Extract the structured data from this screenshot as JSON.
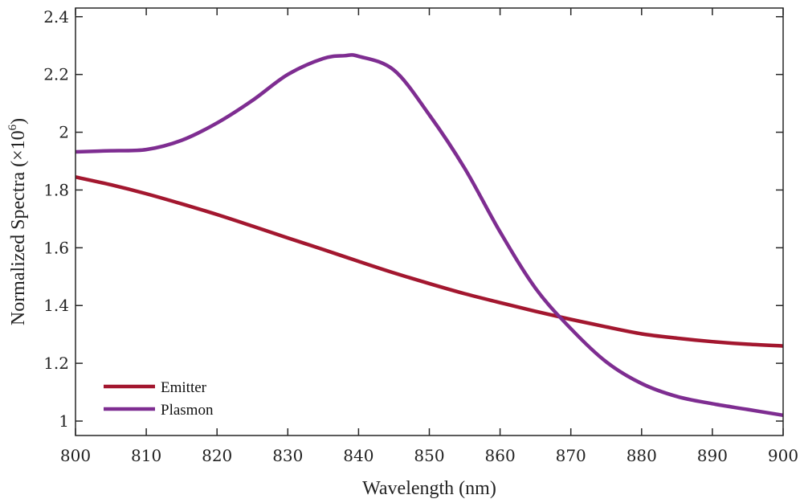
{
  "chart_data": {
    "type": "line",
    "title": "",
    "xlabel": "Wavelength (nm)",
    "ylabel_prefix": "Normalized Spectra (×10",
    "ylabel_exponent": "6",
    "ylabel_suffix": ")",
    "xlim": [
      800,
      900
    ],
    "ylim": [
      0.95,
      2.43
    ],
    "xticks": [
      800,
      810,
      820,
      830,
      840,
      850,
      860,
      870,
      880,
      890,
      900
    ],
    "xtick_labels": [
      "800",
      "810",
      "820",
      "830",
      "840",
      "850",
      "860",
      "870",
      "880",
      "890",
      "900"
    ],
    "yticks": [
      1,
      1.2,
      1.4,
      1.6,
      1.8,
      2,
      2.2,
      2.4
    ],
    "ytick_labels": [
      "1",
      "1.2",
      "1.4",
      "1.6",
      "1.8",
      "2",
      "2.2",
      "2.4"
    ],
    "grid": false,
    "legend_position": "bottom-left",
    "series": [
      {
        "name": "Emitter",
        "color": "#A3172F",
        "x": [
          800,
          805,
          810,
          815,
          820,
          825,
          830,
          835,
          840,
          845,
          850,
          855,
          860,
          865,
          870,
          875,
          880,
          885,
          890,
          895,
          900
        ],
        "y": [
          1.845,
          1.818,
          1.787,
          1.752,
          1.715,
          1.675,
          1.634,
          1.594,
          1.553,
          1.513,
          1.476,
          1.441,
          1.41,
          1.38,
          1.352,
          1.326,
          1.302,
          1.287,
          1.275,
          1.266,
          1.26
        ]
      },
      {
        "name": "Plasmon",
        "color": "#7E2D91",
        "x": [
          800,
          805,
          810,
          815,
          820,
          825,
          830,
          835,
          838,
          840,
          845,
          850,
          855,
          860,
          865,
          870,
          875,
          880,
          885,
          890,
          895,
          900
        ],
        "y": [
          1.932,
          1.936,
          1.94,
          1.972,
          2.032,
          2.11,
          2.2,
          2.255,
          2.265,
          2.263,
          2.215,
          2.06,
          1.875,
          1.655,
          1.46,
          1.32,
          1.205,
          1.13,
          1.085,
          1.06,
          1.04,
          1.02
        ]
      }
    ]
  }
}
